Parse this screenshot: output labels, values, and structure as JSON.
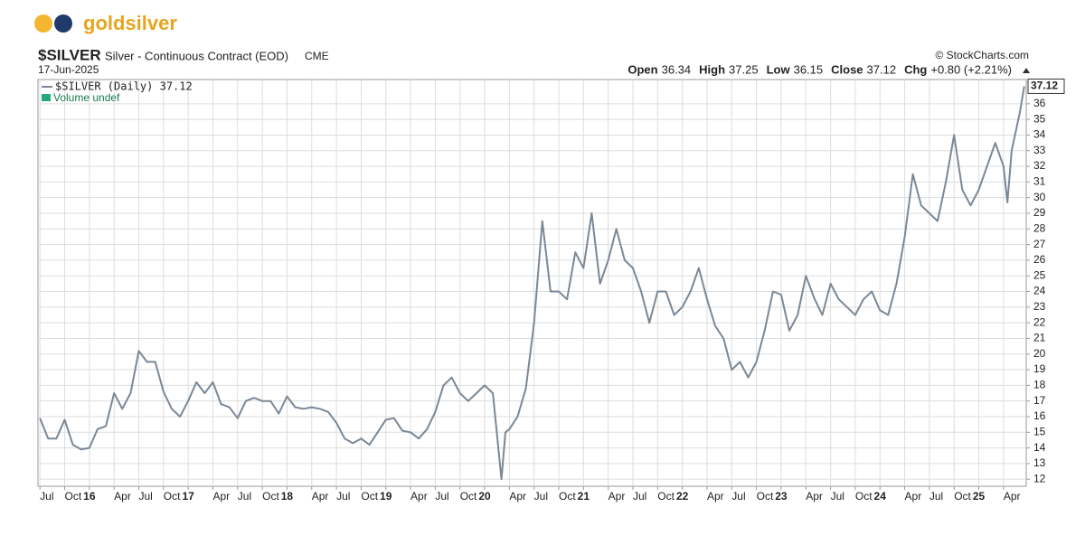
{
  "brand": "goldsilver",
  "chart_data": {
    "type": "line",
    "title": "$SILVER",
    "subtitle": "Silver - Continuous Contract (EOD)",
    "exchange": "CME",
    "date": "17-Jun-2025",
    "credit": "© StockCharts.com",
    "quote": [
      {
        "label": "Open",
        "value": 36.34
      },
      {
        "label": "High",
        "value": 37.25
      },
      {
        "label": "Low",
        "value": 36.15
      },
      {
        "label": "Close",
        "value": 37.12
      },
      {
        "label": "Chg",
        "value": "+0.80 (+2.21%)"
      }
    ],
    "legend": [
      "$SILVER (Daily) 37.12",
      "Volume undef"
    ],
    "grid": true,
    "xlim": [
      2015.48,
      2025.48
    ],
    "ylim": [
      11.55,
      37.55
    ],
    "yticks": [
      12,
      13,
      14,
      15,
      16,
      17,
      18,
      19,
      20,
      21,
      22,
      23,
      24,
      25,
      26,
      27,
      28,
      29,
      30,
      31,
      32,
      33,
      34,
      35,
      36
    ],
    "xticks": [
      {
        "value": 2015.5,
        "label": "Jul"
      },
      {
        "value": 2015.75,
        "label": "Oct"
      },
      {
        "value": 2016,
        "label": "16"
      },
      {
        "value": 2016.25,
        "label": "Apr"
      },
      {
        "value": 2016.5,
        "label": "Jul"
      },
      {
        "value": 2016.75,
        "label": "Oct"
      },
      {
        "value": 2017,
        "label": "17"
      },
      {
        "value": 2017.25,
        "label": "Apr"
      },
      {
        "value": 2017.5,
        "label": "Jul"
      },
      {
        "value": 2017.75,
        "label": "Oct"
      },
      {
        "value": 2018,
        "label": "18"
      },
      {
        "value": 2018.25,
        "label": "Apr"
      },
      {
        "value": 2018.5,
        "label": "Jul"
      },
      {
        "value": 2018.75,
        "label": "Oct"
      },
      {
        "value": 2019,
        "label": "19"
      },
      {
        "value": 2019.25,
        "label": "Apr"
      },
      {
        "value": 2019.5,
        "label": "Jul"
      },
      {
        "value": 2019.75,
        "label": "Oct"
      },
      {
        "value": 2020,
        "label": "20"
      },
      {
        "value": 2020.25,
        "label": "Apr"
      },
      {
        "value": 2020.5,
        "label": "Jul"
      },
      {
        "value": 2020.75,
        "label": "Oct"
      },
      {
        "value": 2021,
        "label": "21"
      },
      {
        "value": 2021.25,
        "label": "Apr"
      },
      {
        "value": 2021.5,
        "label": "Jul"
      },
      {
        "value": 2021.75,
        "label": "Oct"
      },
      {
        "value": 2022,
        "label": "22"
      },
      {
        "value": 2022.25,
        "label": "Apr"
      },
      {
        "value": 2022.5,
        "label": "Jul"
      },
      {
        "value": 2022.75,
        "label": "Oct"
      },
      {
        "value": 2023,
        "label": "23"
      },
      {
        "value": 2023.25,
        "label": "Apr"
      },
      {
        "value": 2023.5,
        "label": "Jul"
      },
      {
        "value": 2023.75,
        "label": "Oct"
      },
      {
        "value": 2024,
        "label": "24"
      },
      {
        "value": 2024.25,
        "label": "Apr"
      },
      {
        "value": 2024.5,
        "label": "Jul"
      },
      {
        "value": 2024.75,
        "label": "Oct"
      },
      {
        "value": 2025,
        "label": "25"
      },
      {
        "value": 2025.25,
        "label": "Apr"
      }
    ],
    "x": [
      2015.5,
      2015.583,
      2015.667,
      2015.75,
      2015.833,
      2015.917,
      2016,
      2016.083,
      2016.167,
      2016.25,
      2016.333,
      2016.417,
      2016.5,
      2016.583,
      2016.667,
      2016.75,
      2016.833,
      2016.917,
      2017,
      2017.083,
      2017.167,
      2017.25,
      2017.333,
      2017.417,
      2017.5,
      2017.583,
      2017.667,
      2017.75,
      2017.833,
      2017.917,
      2018,
      2018.083,
      2018.167,
      2018.25,
      2018.333,
      2018.417,
      2018.5,
      2018.583,
      2018.667,
      2018.75,
      2018.833,
      2018.917,
      2019,
      2019.083,
      2019.167,
      2019.25,
      2019.333,
      2019.417,
      2019.5,
      2019.583,
      2019.667,
      2019.75,
      2019.833,
      2019.917,
      2020,
      2020.083,
      2020.17,
      2020.21,
      2020.25,
      2020.333,
      2020.417,
      2020.5,
      2020.583,
      2020.667,
      2020.75,
      2020.833,
      2020.917,
      2021,
      2021.083,
      2021.167,
      2021.25,
      2021.333,
      2021.417,
      2021.5,
      2021.583,
      2021.667,
      2021.75,
      2021.833,
      2021.917,
      2022,
      2022.083,
      2022.167,
      2022.25,
      2022.333,
      2022.417,
      2022.5,
      2022.583,
      2022.667,
      2022.75,
      2022.833,
      2022.917,
      2023,
      2023.083,
      2023.167,
      2023.25,
      2023.333,
      2023.417,
      2023.5,
      2023.583,
      2023.667,
      2023.75,
      2023.833,
      2023.917,
      2024,
      2024.083,
      2024.167,
      2024.25,
      2024.333,
      2024.417,
      2024.5,
      2024.583,
      2024.667,
      2024.75,
      2024.833,
      2024.917,
      2025,
      2025.083,
      2025.167,
      2025.25,
      2025.29,
      2025.333,
      2025.417,
      2025.46
    ],
    "series": [
      {
        "name": "$SILVER (Daily)",
        "color": "#7a8896",
        "values": [
          15.9,
          14.6,
          14.6,
          15.8,
          14.2,
          13.9,
          14.0,
          15.2,
          15.4,
          17.5,
          16.5,
          17.5,
          20.2,
          19.5,
          19.5,
          17.6,
          16.5,
          16.0,
          17.0,
          18.2,
          17.5,
          18.2,
          16.8,
          16.6,
          15.9,
          17.0,
          17.2,
          17.0,
          17.0,
          16.2,
          17.3,
          16.6,
          16.5,
          16.6,
          16.5,
          16.3,
          15.6,
          14.6,
          14.3,
          14.6,
          14.2,
          15.0,
          15.8,
          15.9,
          15.1,
          15.0,
          14.6,
          15.2,
          16.3,
          18.0,
          18.5,
          17.5,
          17.0,
          17.5,
          18.0,
          17.5,
          12.0,
          15.0,
          15.2,
          16.0,
          17.8,
          22.0,
          28.5,
          24.0,
          24.0,
          23.5,
          26.5,
          25.5,
          29.0,
          24.5,
          26.0,
          28.0,
          26.0,
          25.5,
          24.0,
          22.0,
          24.0,
          24.0,
          22.5,
          23.0,
          24.0,
          25.5,
          23.5,
          21.8,
          21.0,
          19.0,
          19.5,
          18.5,
          19.5,
          21.5,
          24.0,
          23.8,
          21.5,
          22.5,
          25.0,
          23.6,
          22.5,
          24.5,
          23.5,
          23.0,
          22.5,
          23.5,
          24.0,
          22.8,
          22.5,
          24.5,
          27.5,
          31.5,
          29.5,
          29.0,
          28.5,
          31.0,
          34.0,
          30.5,
          29.5,
          30.5,
          32.0,
          33.5,
          32.0,
          29.7,
          33.0,
          35.5,
          37.12
        ]
      }
    ]
  }
}
